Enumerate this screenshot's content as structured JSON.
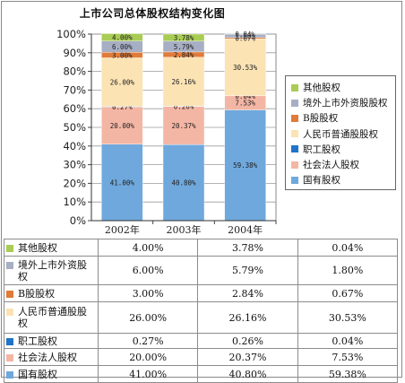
{
  "chart_data": {
    "type": "bar",
    "stacked": "percent",
    "title": "上市公司总体股权结构变化图",
    "categories": [
      "2002年",
      "2003年",
      "2004年"
    ],
    "yticks": [
      "0%",
      "10%",
      "20%",
      "30%",
      "40%",
      "50%",
      "60%",
      "70%",
      "80%",
      "90%",
      "100%"
    ],
    "ylim": [
      0,
      100
    ],
    "legend_position": "right",
    "series": [
      {
        "name": "国有股权",
        "color": "#6fa8dc",
        "values": [
          41.0,
          40.8,
          59.38
        ],
        "labels": [
          "41.00%",
          "40.80%",
          "59.38%"
        ]
      },
      {
        "name": "社会法人股权",
        "color": "#f4b6a4",
        "values": [
          20.0,
          20.37,
          7.53
        ],
        "labels": [
          "20.00%",
          "20.37%",
          "7.53%"
        ]
      },
      {
        "name": "职工股权",
        "color": "#1f74c8",
        "values": [
          0.27,
          0.26,
          0.04
        ],
        "labels": [
          "0.27%",
          "0.26%",
          "0.04%"
        ]
      },
      {
        "name": "人民币普通股股权",
        "color": "#fbe3b4",
        "values": [
          26.0,
          26.16,
          30.53
        ],
        "labels": [
          "26.00%",
          "26.16%",
          "30.53%"
        ]
      },
      {
        "name": "B股股权",
        "color": "#e07b39",
        "values": [
          3.0,
          2.84,
          0.67
        ],
        "labels": [
          "3.00%",
          "2.84%",
          "0.67%"
        ]
      },
      {
        "name": "境外上市外资股股权",
        "color": "#a7afc4",
        "values": [
          6.0,
          5.79,
          1.8
        ],
        "labels": [
          "6.00%",
          "5.79%",
          "1.80%"
        ]
      },
      {
        "name": "其他股权",
        "color": "#a9cc54",
        "values": [
          4.0,
          3.78,
          0.04
        ],
        "labels": [
          "4.00%",
          "3.78%",
          "0.04%"
        ]
      }
    ],
    "legend_order": [
      "其他股权",
      "境外上市外资股股权",
      "B股股权",
      "人民币普通股股权",
      "职工股权",
      "社会法人股权",
      "国有股权"
    ],
    "table_order": [
      "其他股权",
      "境外上市外资股权",
      "B股股权",
      "人民币普通股股权",
      "职工股权",
      "社会法人股权",
      "国有股权"
    ],
    "table_colors": [
      "#a9cc54",
      "#a7afc4",
      "#e07b39",
      "#fbe3b4",
      "#1f74c8",
      "#f4b6a4",
      "#6fa8dc"
    ]
  }
}
